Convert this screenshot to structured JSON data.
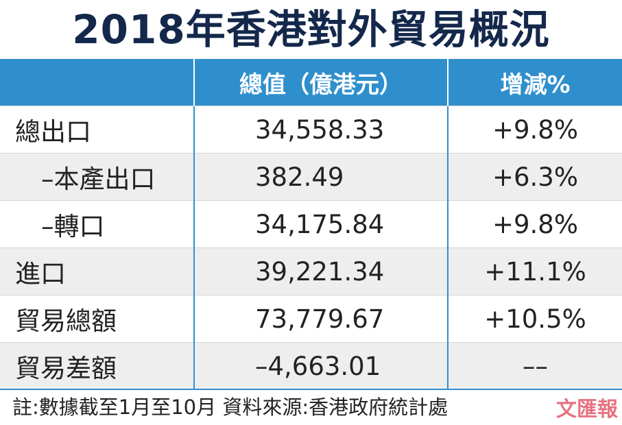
{
  "chart_data": {
    "type": "table",
    "title": "2018年香港對外貿易概況",
    "columns": [
      "",
      "總值（億港元）",
      "增減%"
    ],
    "rows": [
      {
        "label": "總出口",
        "value": "34,558.33",
        "change": "+9.8%",
        "indent": false
      },
      {
        "label": "–本產出口",
        "value": "382.49",
        "change": "+6.3%",
        "indent": true
      },
      {
        "label": "–轉口",
        "value": "34,175.84",
        "change": "+9.8%",
        "indent": true
      },
      {
        "label": "進口",
        "value": "39,221.34",
        "change": "+11.1%",
        "indent": false
      },
      {
        "label": "貿易總額",
        "value": "73,779.67",
        "change": "+10.5%",
        "indent": false
      },
      {
        "label": "貿易差額",
        "value": "–4,663.01",
        "change": "––",
        "indent": false
      }
    ],
    "note": "註:數據截至1月至10月  資料來源:香港政府統計處"
  },
  "watermark": "文匯報",
  "colors": {
    "header_bg": "#2f8fcd",
    "title": "#14284b",
    "stripe": "#eeeeee"
  }
}
